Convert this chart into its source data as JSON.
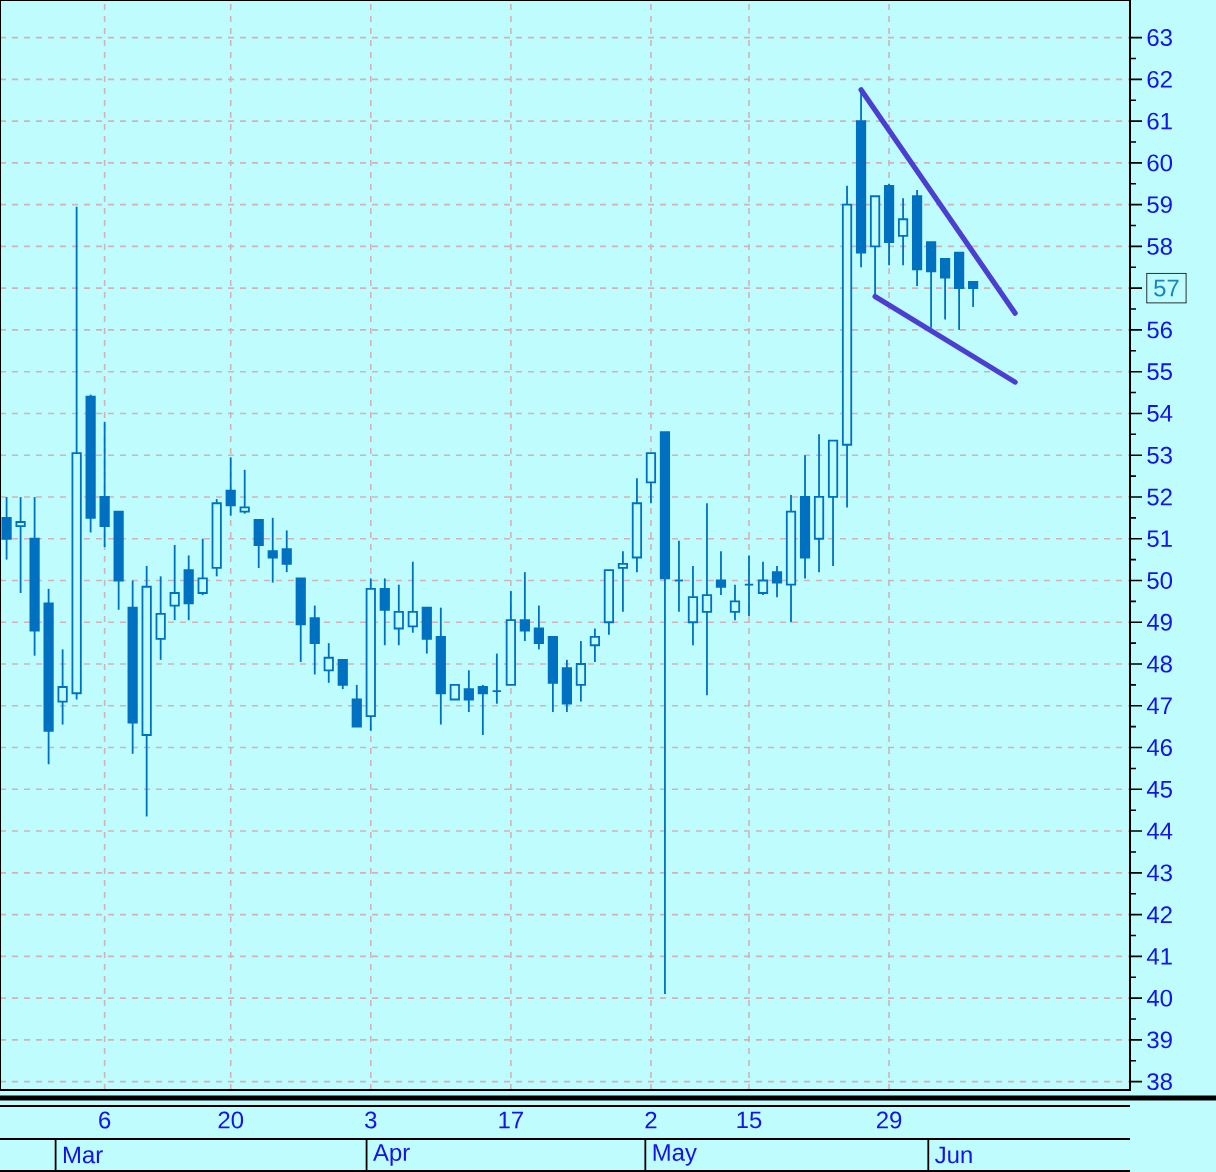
{
  "chart_data": {
    "type": "candlestick",
    "categories": [
      null,
      null,
      null,
      null,
      null,
      null,
      null,
      "6",
      null,
      null,
      null,
      null,
      null,
      null,
      null,
      null,
      "20",
      null,
      null,
      null,
      null,
      null,
      null,
      null,
      null,
      null,
      "3",
      null,
      null,
      null,
      null,
      null,
      null,
      null,
      null,
      null,
      "17",
      null,
      null,
      null,
      null,
      null,
      null,
      null,
      null,
      null,
      "2",
      null,
      null,
      null,
      null,
      null,
      null,
      "15",
      null,
      null,
      null,
      null,
      null,
      null,
      null,
      null,
      null,
      "29",
      null,
      null,
      null,
      null,
      null,
      null,
      null,
      null,
      null
    ],
    "ohlc": [
      [
        51.5,
        52.0,
        50.5,
        51.0
      ],
      [
        51.3,
        52.0,
        49.7,
        51.4
      ],
      [
        51.0,
        52.0,
        48.2,
        48.8
      ],
      [
        49.45,
        49.8,
        45.6,
        46.4
      ],
      [
        47.1,
        48.35,
        46.55,
        47.45
      ],
      [
        47.3,
        58.95,
        47.15,
        53.05
      ],
      [
        54.4,
        54.45,
        51.15,
        51.5
      ],
      [
        52.0,
        53.8,
        50.8,
        51.3
      ],
      [
        51.65,
        51.65,
        49.3,
        50.0
      ],
      [
        49.35,
        50.0,
        45.85,
        46.6
      ],
      [
        46.3,
        50.35,
        44.35,
        49.85
      ],
      [
        48.6,
        50.1,
        48.1,
        49.2
      ],
      [
        49.4,
        50.85,
        49.05,
        49.7
      ],
      [
        50.25,
        50.6,
        49.05,
        49.45
      ],
      [
        49.7,
        51.0,
        49.65,
        50.05
      ],
      [
        50.3,
        51.95,
        50.1,
        51.85
      ],
      [
        52.15,
        52.95,
        51.55,
        51.8
      ],
      [
        51.65,
        52.65,
        51.6,
        51.75
      ],
      [
        51.45,
        51.45,
        50.3,
        50.85
      ],
      [
        50.7,
        51.5,
        49.95,
        50.55
      ],
      [
        50.75,
        51.2,
        50.2,
        50.4
      ],
      [
        50.05,
        50.05,
        48.05,
        48.95
      ],
      [
        49.1,
        49.4,
        47.75,
        48.5
      ],
      [
        47.85,
        48.5,
        47.55,
        48.15
      ],
      [
        48.1,
        48.1,
        47.4,
        47.5
      ],
      [
        47.15,
        47.5,
        46.5,
        46.5
      ],
      [
        46.75,
        50.05,
        46.4,
        49.8
      ],
      [
        49.8,
        50.05,
        48.45,
        49.3
      ],
      [
        48.85,
        49.9,
        48.45,
        49.25
      ],
      [
        48.9,
        50.45,
        48.75,
        49.25
      ],
      [
        49.35,
        49.35,
        48.25,
        48.6
      ],
      [
        48.65,
        49.35,
        46.55,
        47.3
      ],
      [
        47.15,
        47.5,
        47.15,
        47.5
      ],
      [
        47.4,
        47.85,
        46.85,
        47.15
      ],
      [
        47.45,
        47.5,
        46.3,
        47.3
      ],
      [
        47.35,
        48.25,
        47.05,
        47.35
      ],
      [
        47.5,
        49.75,
        47.5,
        49.05
      ],
      [
        49.05,
        50.2,
        48.55,
        48.8
      ],
      [
        48.85,
        49.4,
        48.35,
        48.5
      ],
      [
        48.65,
        48.65,
        46.85,
        47.55
      ],
      [
        47.9,
        48.1,
        46.85,
        47.05
      ],
      [
        47.5,
        48.55,
        47.1,
        48.0
      ],
      [
        48.45,
        48.85,
        48.05,
        48.65
      ],
      [
        49.0,
        50.25,
        48.7,
        50.25
      ],
      [
        50.3,
        50.7,
        49.25,
        50.4
      ],
      [
        50.55,
        52.45,
        50.2,
        51.85
      ],
      [
        52.35,
        53.05,
        51.85,
        53.05
      ],
      [
        53.55,
        53.55,
        40.1,
        50.05
      ],
      [
        50.0,
        50.95,
        49.25,
        50.0
      ],
      [
        49.0,
        50.35,
        48.45,
        49.6
      ],
      [
        49.25,
        51.85,
        47.25,
        49.65
      ],
      [
        50.0,
        50.7,
        49.65,
        49.85
      ],
      [
        49.25,
        49.9,
        49.05,
        49.5
      ],
      [
        49.9,
        50.6,
        49.15,
        49.9
      ],
      [
        49.7,
        50.45,
        49.65,
        50.0
      ],
      [
        50.2,
        50.35,
        49.6,
        49.95
      ],
      [
        49.9,
        52.05,
        49.0,
        51.65
      ],
      [
        52.0,
        53.0,
        50.05,
        50.55
      ],
      [
        51.0,
        53.5,
        50.2,
        52.0
      ],
      [
        52.0,
        53.35,
        50.35,
        53.35
      ],
      [
        53.25,
        59.45,
        51.75,
        59.0
      ],
      [
        61.0,
        61.75,
        57.5,
        57.85
      ],
      [
        58.0,
        59.2,
        56.8,
        59.2
      ],
      [
        59.45,
        59.5,
        57.55,
        58.1
      ],
      [
        58.25,
        59.15,
        57.55,
        58.65
      ],
      [
        59.2,
        59.35,
        57.05,
        57.45
      ],
      [
        58.1,
        58.1,
        56.05,
        57.4
      ],
      [
        57.7,
        57.7,
        56.25,
        57.25
      ],
      [
        57.85,
        57.85,
        56.0,
        57.0
      ],
      [
        57.15,
        57.15,
        56.55,
        57.0
      ],
      null,
      null,
      null
    ],
    "color": "#0070c0",
    "series": [
      {
        "type": "line",
        "color": "#4b3fd1",
        "values": [
          null,
          null,
          null,
          null,
          null,
          null,
          null,
          null,
          null,
          null,
          null,
          null,
          null,
          null,
          null,
          null,
          null,
          null,
          null,
          null,
          null,
          null,
          null,
          null,
          null,
          null,
          null,
          null,
          null,
          null,
          null,
          null,
          null,
          null,
          null,
          null,
          null,
          null,
          null,
          null,
          null,
          null,
          null,
          null,
          null,
          null,
          null,
          null,
          null,
          null,
          null,
          null,
          null,
          null,
          null,
          null,
          null,
          null,
          null,
          null,
          null,
          61.75,
          null,
          null,
          null,
          null,
          null,
          null,
          null,
          null,
          null,
          null,
          56.4
        ]
      },
      {
        "type": "line",
        "color": "#4b3fd1",
        "values": [
          null,
          null,
          null,
          null,
          null,
          null,
          null,
          null,
          null,
          null,
          null,
          null,
          null,
          null,
          null,
          null,
          null,
          null,
          null,
          null,
          null,
          null,
          null,
          null,
          null,
          null,
          null,
          null,
          null,
          null,
          null,
          null,
          null,
          null,
          null,
          null,
          null,
          null,
          null,
          null,
          null,
          null,
          null,
          null,
          null,
          null,
          null,
          null,
          null,
          null,
          null,
          null,
          null,
          null,
          null,
          null,
          null,
          null,
          null,
          null,
          null,
          null,
          56.8,
          null,
          null,
          null,
          null,
          null,
          null,
          null,
          null,
          null,
          54.75
        ]
      }
    ],
    "ylim": [
      37.8,
      63.9
    ],
    "yticks": [
      38,
      39,
      40,
      41,
      42,
      43,
      44,
      45,
      46,
      47,
      48,
      49,
      50,
      51,
      52,
      53,
      54,
      55,
      56,
      57,
      58,
      59,
      60,
      61,
      62,
      63
    ],
    "grid": true,
    "annotations": [
      "Mar",
      "Apr",
      "May",
      "Jun"
    ]
  }
}
